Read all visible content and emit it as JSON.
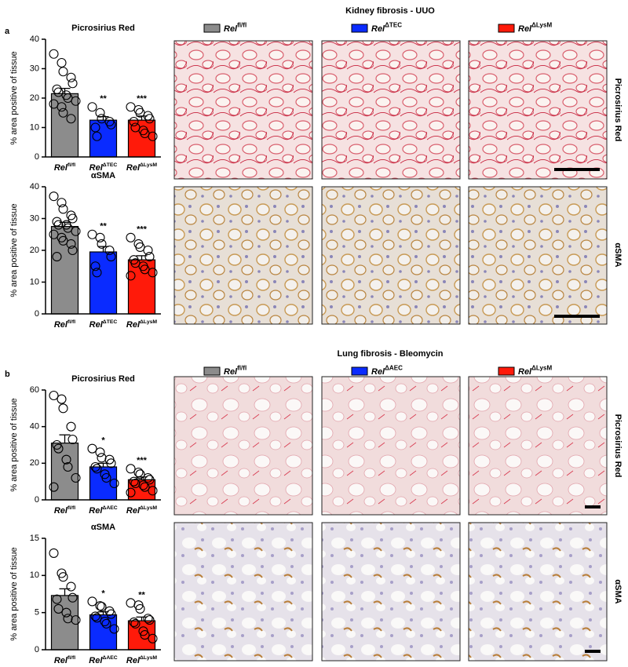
{
  "chart_data": [
    {
      "type": "bar",
      "title": "Picrosirius Red",
      "ylabel": "% area positive of tissue",
      "categories": [
        {
          "base": "Rel",
          "sup": "fl/fl"
        },
        {
          "base": "Rel",
          "sup": "ΔTEC"
        },
        {
          "base": "Rel",
          "sup": "ΔLysM"
        }
      ],
      "colors": [
        "#8c8c8c",
        "#0a2bff",
        "#ff1a0a"
      ],
      "values": [
        21.5,
        12.5,
        12.5
      ],
      "errors": [
        1.8,
        1.2,
        1.4
      ],
      "annotations": [
        null,
        "**",
        "***"
      ],
      "points": [
        [
          35,
          32,
          29,
          27,
          25,
          23,
          22,
          21,
          20,
          19,
          18,
          17,
          15,
          13
        ],
        [
          17,
          15,
          13,
          12,
          11,
          10,
          7
        ],
        [
          17,
          16,
          15,
          14,
          13,
          12,
          10,
          9,
          8,
          7
        ]
      ],
      "ylim": [
        0,
        40
      ],
      "yticks": [
        0,
        10,
        20,
        30,
        40
      ]
    },
    {
      "type": "bar",
      "title": "αSMA",
      "ylabel": "% area positive of tissue",
      "categories": [
        {
          "base": "Rel",
          "sup": "fl/fl"
        },
        {
          "base": "Rel",
          "sup": "ΔTEC"
        },
        {
          "base": "Rel",
          "sup": "ΔLysM"
        }
      ],
      "colors": [
        "#8c8c8c",
        "#0a2bff",
        "#ff1a0a"
      ],
      "values": [
        27.5,
        19.5,
        17
      ],
      "errors": [
        1.3,
        1.7,
        1.3
      ],
      "annotations": [
        null,
        "**",
        "***"
      ],
      "points": [
        [
          37,
          35,
          33,
          31,
          30,
          29,
          28,
          28,
          27,
          26,
          25,
          24,
          23,
          22,
          20,
          18
        ],
        [
          25,
          24,
          22,
          20,
          18,
          15,
          13
        ],
        [
          24,
          22,
          21,
          20,
          18,
          17,
          16,
          15,
          14,
          13,
          12
        ]
      ],
      "ylim": [
        0,
        40
      ],
      "yticks": [
        0,
        10,
        20,
        30,
        40
      ]
    },
    {
      "type": "bar",
      "title": "Picrosirius Red",
      "ylabel": "% area positive of tissue",
      "categories": [
        {
          "base": "Rel",
          "sup": "fl/fl"
        },
        {
          "base": "Rel",
          "sup": "ΔAEC"
        },
        {
          "base": "Rel",
          "sup": "ΔLysM"
        }
      ],
      "colors": [
        "#8c8c8c",
        "#0a2bff",
        "#ff1a0a"
      ],
      "values": [
        31,
        18,
        11
      ],
      "errors": [
        4.5,
        2,
        1.5
      ],
      "annotations": [
        null,
        "*",
        "***"
      ],
      "points": [
        [
          57,
          55,
          50,
          40,
          33,
          30,
          28,
          22,
          18,
          12,
          7
        ],
        [
          28,
          26,
          23,
          22,
          20,
          18,
          17,
          14,
          12,
          9
        ],
        [
          17,
          15,
          14,
          12,
          11,
          10,
          9,
          8,
          7,
          5,
          4
        ]
      ],
      "ylim": [
        0,
        60
      ],
      "yticks": [
        0,
        20,
        40,
        60
      ]
    },
    {
      "type": "bar",
      "title": "αSMA",
      "ylabel": "% area positive of tissue",
      "categories": [
        {
          "base": "Rel",
          "sup": "fl/fl"
        },
        {
          "base": "Rel",
          "sup": "ΔAEC"
        },
        {
          "base": "Rel",
          "sup": "ΔLysM"
        }
      ],
      "colors": [
        "#8c8c8c",
        "#0a2bff",
        "#ff1a0a"
      ],
      "values": [
        7.3,
        4.7,
        3.9
      ],
      "errors": [
        0.9,
        0.4,
        0.5
      ],
      "annotations": [
        null,
        "*",
        "**"
      ],
      "points": [
        [
          13,
          10.3,
          9.8,
          8.5,
          7,
          6.8,
          5.5,
          5,
          4.2,
          4
        ],
        [
          6.5,
          5.9,
          5.8,
          5.2,
          4.8,
          4.5,
          4.3,
          3.8,
          3.5,
          2.8
        ],
        [
          6.3,
          6,
          5.5,
          4.2,
          4,
          3.7,
          3.5,
          2.5,
          2,
          1.5
        ]
      ],
      "ylim": [
        0,
        15
      ],
      "yticks": [
        0,
        5,
        10,
        15
      ]
    }
  ],
  "figure": {
    "panels": [
      {
        "letter": "a",
        "title": "Kidney fibrosis - UUO",
        "legend": [
          {
            "base": "Rel",
            "sup": "fl/fl",
            "color": "#8c8c8c"
          },
          {
            "base": "Rel",
            "sup": "ΔTEC",
            "color": "#0a2bff"
          },
          {
            "base": "Rel",
            "sup": "ΔLysM",
            "color": "#ff1a0a"
          }
        ],
        "rows": [
          "Picrosirius Red",
          "αSMA"
        ]
      },
      {
        "letter": "b",
        "title": "Lung fibrosis -  Bleomycin",
        "legend": [
          {
            "base": "Rel",
            "sup": "fl/fl",
            "color": "#8c8c8c"
          },
          {
            "base": "Rel",
            "sup": "ΔAEC",
            "color": "#0a2bff"
          },
          {
            "base": "Rel",
            "sup": "ΔLysM",
            "color": "#ff1a0a"
          }
        ],
        "rows": [
          "Picrosirius Red",
          "αSMA"
        ]
      }
    ]
  }
}
